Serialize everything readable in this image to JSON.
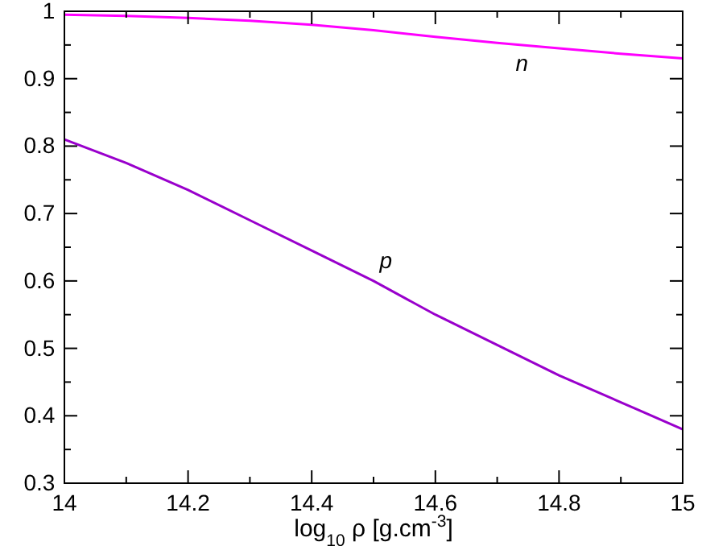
{
  "chart_data": {
    "type": "line",
    "xlabel": "log$_{10}$ ρ [g.cm$^{-3}$]",
    "xlim": [
      14,
      15
    ],
    "ylim": [
      0.3,
      1
    ],
    "xticks": [
      14,
      {
        "value": 14.1,
        "label": null
      },
      14.2,
      {
        "value": 14.3,
        "label": null
      },
      14.4,
      {
        "value": 14.5,
        "label": null
      },
      14.6,
      {
        "value": 14.7,
        "label": null
      },
      14.8,
      {
        "value": 14.9,
        "label": null
      },
      15
    ],
    "yticks": [
      0.3,
      {
        "value": 0.35,
        "label": null
      },
      0.4,
      {
        "value": 0.45,
        "label": null
      },
      0.5,
      {
        "value": 0.55,
        "label": null
      },
      0.6,
      {
        "value": 0.65,
        "label": null
      },
      0.7,
      {
        "value": 0.75,
        "label": null
      },
      0.8,
      {
        "value": 0.85,
        "label": null
      },
      0.9,
      {
        "value": 0.95,
        "label": null
      },
      1
    ],
    "x": [
      14,
      14.1,
      14.2,
      14.3,
      14.4,
      14.5,
      14.6,
      14.7,
      14.8,
      14.9,
      15
    ],
    "series": [
      {
        "color": "#ff00ff",
        "values": [
          0.995,
          0.993,
          0.99,
          0.986,
          0.98,
          0.972,
          0.962,
          0.953,
          0.945,
          0.937,
          0.93
        ]
      },
      {
        "color": "#9900cc",
        "values": [
          0.81,
          0.775,
          0.735,
          0.69,
          0.645,
          0.6,
          0.55,
          0.505,
          0.46,
          0.42,
          0.38
        ]
      }
    ],
    "annotations": [
      {
        "text": "n",
        "x": 14.74,
        "y": 0.95
      },
      {
        "text": "p",
        "x": 14.52,
        "y": 0.59
      }
    ],
    "grid": false,
    "line_style": "solid",
    "marker": "none"
  }
}
